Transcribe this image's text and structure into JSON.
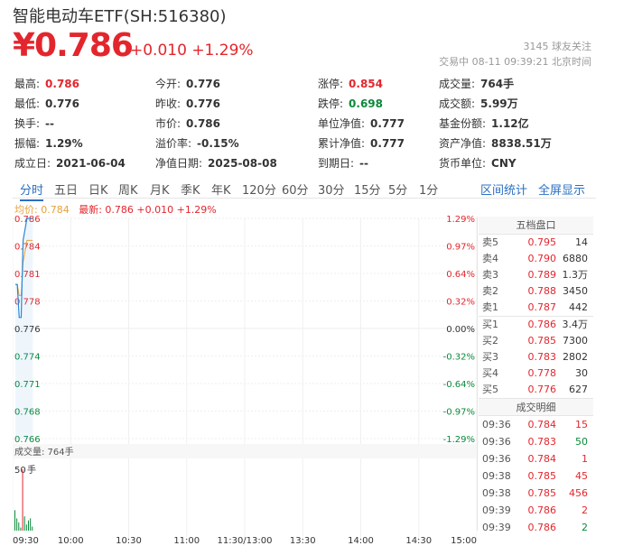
{
  "header": {
    "title": "智能电动车ETF(SH:516380)",
    "price": "¥0.786",
    "change": "+0.010 +1.29%",
    "followers": "3145 球友关注",
    "trade_time": "交易中 08-11 09:39:21 北京时间"
  },
  "stats": [
    [
      {
        "k": "最高:",
        "v": "0.786",
        "c": "red"
      },
      {
        "k": "今开:",
        "v": "0.776",
        "c": ""
      },
      {
        "k": "涨停:",
        "v": "0.854",
        "c": "red"
      },
      {
        "k": "成交量:",
        "v": "764手",
        "c": ""
      }
    ],
    [
      {
        "k": "最低:",
        "v": "0.776",
        "c": ""
      },
      {
        "k": "昨收:",
        "v": "0.776",
        "c": ""
      },
      {
        "k": "跌停:",
        "v": "0.698",
        "c": "green"
      },
      {
        "k": "成交额:",
        "v": "5.99万",
        "c": ""
      }
    ],
    [
      {
        "k": "换手:",
        "v": "--",
        "c": ""
      },
      {
        "k": "市价:",
        "v": "0.786",
        "c": ""
      },
      {
        "k": "单位净值:",
        "v": "0.777",
        "c": ""
      },
      {
        "k": "基金份额:",
        "v": "1.12亿",
        "c": ""
      }
    ],
    [
      {
        "k": "振幅:",
        "v": "1.29%",
        "c": ""
      },
      {
        "k": "溢价率:",
        "v": "-0.15%",
        "c": ""
      },
      {
        "k": "累计净值:",
        "v": "0.777",
        "c": ""
      },
      {
        "k": "资产净值:",
        "v": "8838.51万",
        "c": ""
      }
    ],
    [
      {
        "k": "成立日:",
        "v": "2021-06-04",
        "c": ""
      },
      {
        "k": "净值日期:",
        "v": "2025-08-08",
        "c": ""
      },
      {
        "k": "到期日:",
        "v": "--",
        "c": ""
      },
      {
        "k": "货币单位:",
        "v": "CNY",
        "c": ""
      }
    ]
  ],
  "tabs": [
    "分时",
    "五日",
    "日K",
    "周K",
    "月K",
    "季K",
    "年K",
    "120分",
    "60分",
    "30分",
    "15分",
    "5分",
    "1分"
  ],
  "tab_links": [
    "区间统计",
    "全屏显示"
  ],
  "legend": {
    "avg": "均价: 0.784",
    "last": "最新: 0.786 +0.010 +1.29%"
  },
  "chart_data": {
    "type": "line",
    "price_axis": [
      "0.786",
      "0.784",
      "0.781",
      "0.778",
      "0.776",
      "0.774",
      "0.771",
      "0.768",
      "0.766"
    ],
    "pct_axis": [
      "1.29%",
      "0.97%",
      "0.64%",
      "0.32%",
      "0.00%",
      "-0.32%",
      "-0.64%",
      "-0.97%",
      "-1.29%"
    ],
    "time_axis": [
      "09:30",
      "10:00",
      "10:30",
      "11:00",
      "11:30/13:00",
      "13:30",
      "14:00",
      "14:30",
      "15:00"
    ],
    "ylim": [
      0.766,
      0.786
    ],
    "price_series": [
      0.78,
      0.78,
      0.777,
      0.777,
      0.784,
      0.785,
      0.786,
      0.786,
      0.786,
      0.786
    ],
    "avg_series": [
      0.78,
      0.78,
      0.779,
      0.779,
      0.782,
      0.783,
      0.784,
      0.784,
      0.784,
      0.784
    ],
    "volume_label": "成交量: 764手",
    "volume_axis": "50",
    "volume_unit": "手",
    "volume": [
      20,
      12,
      8,
      3,
      60,
      14,
      6,
      10,
      12,
      4
    ]
  },
  "order_book": {
    "title": "五档盘口",
    "rows": [
      {
        "l": "卖5",
        "p": "0.795",
        "v": "14"
      },
      {
        "l": "卖4",
        "p": "0.790",
        "v": "6880"
      },
      {
        "l": "卖3",
        "p": "0.789",
        "v": "1.3万"
      },
      {
        "l": "卖2",
        "p": "0.788",
        "v": "3450"
      },
      {
        "l": "卖1",
        "p": "0.787",
        "v": "442"
      },
      {
        "l": "买1",
        "p": "0.786",
        "v": "3.4万"
      },
      {
        "l": "买2",
        "p": "0.785",
        "v": "7300"
      },
      {
        "l": "买3",
        "p": "0.783",
        "v": "2802"
      },
      {
        "l": "买4",
        "p": "0.778",
        "v": "30"
      },
      {
        "l": "买5",
        "p": "0.776",
        "v": "627"
      }
    ]
  },
  "trades": {
    "title": "成交明细",
    "rows": [
      {
        "t": "09:36",
        "p": "0.784",
        "v": "15",
        "c": "red"
      },
      {
        "t": "09:36",
        "p": "0.783",
        "v": "50",
        "c": "green"
      },
      {
        "t": "09:36",
        "p": "0.784",
        "v": "1",
        "c": "red"
      },
      {
        "t": "09:38",
        "p": "0.785",
        "v": "45",
        "c": "red"
      },
      {
        "t": "09:38",
        "p": "0.785",
        "v": "456",
        "c": "red"
      },
      {
        "t": "09:39",
        "p": "0.786",
        "v": "2",
        "c": "red"
      },
      {
        "t": "09:39",
        "p": "0.786",
        "v": "2",
        "c": "green"
      }
    ]
  },
  "colors": {
    "up": "#e3262d",
    "down": "#0b8a3b",
    "avg": "#e6a23c",
    "price": "#2b86d6"
  }
}
